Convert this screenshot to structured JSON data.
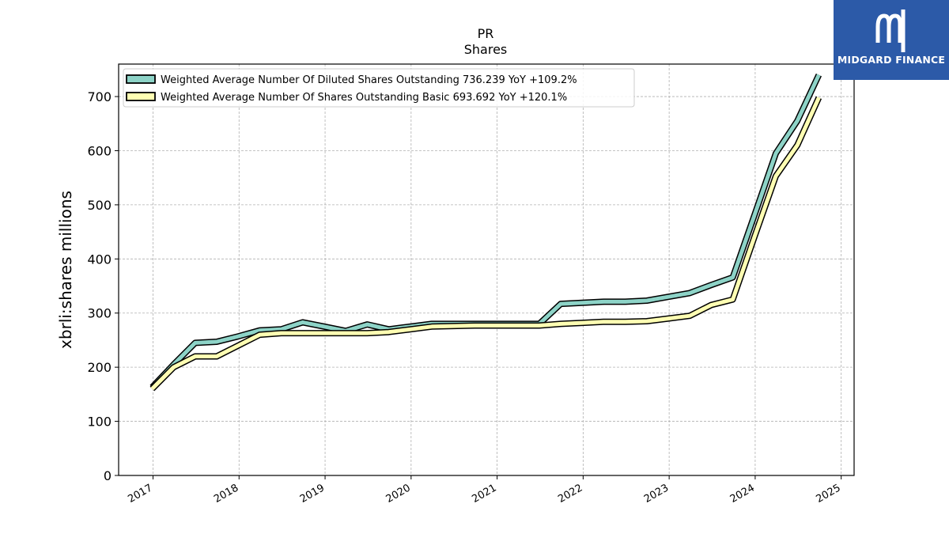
{
  "chart_data": {
    "type": "line",
    "title": "PR",
    "subtitle": "Shares",
    "ylabel": "xbrli:shares millions",
    "xlabel": "",
    "ylim": [
      0,
      760
    ],
    "xlim": [
      2016.6,
      2025.15
    ],
    "yticks": [
      0,
      100,
      200,
      300,
      400,
      500,
      600,
      700
    ],
    "xticks": [
      "2017",
      "2018",
      "2019",
      "2020",
      "2021",
      "2022",
      "2023",
      "2024",
      "2025"
    ],
    "grid": true,
    "legend_position": "top-left",
    "series": [
      {
        "name": "Weighted Average Number Of Diluted Shares Outstanding  736.239 YoY +109.2%",
        "color": "#8dd3c7",
        "points": [
          [
            2016.99,
            163
          ],
          [
            2017.24,
            205
          ],
          [
            2017.49,
            245
          ],
          [
            2017.74,
            247
          ],
          [
            2017.99,
            257
          ],
          [
            2018.24,
            268
          ],
          [
            2018.49,
            270
          ],
          [
            2018.74,
            283
          ],
          [
            2018.99,
            275
          ],
          [
            2019.24,
            267
          ],
          [
            2019.49,
            279
          ],
          [
            2019.74,
            270
          ],
          [
            2019.99,
            275
          ],
          [
            2020.24,
            280
          ],
          [
            2020.74,
            280
          ],
          [
            2021.24,
            280
          ],
          [
            2021.49,
            280
          ],
          [
            2021.74,
            317
          ],
          [
            2021.99,
            319
          ],
          [
            2022.24,
            321
          ],
          [
            2022.49,
            321
          ],
          [
            2022.74,
            323
          ],
          [
            2022.99,
            330
          ],
          [
            2023.24,
            337
          ],
          [
            2023.49,
            352
          ],
          [
            2023.74,
            366
          ],
          [
            2023.99,
            480
          ],
          [
            2024.24,
            595
          ],
          [
            2024.49,
            655
          ],
          [
            2024.74,
            740
          ]
        ]
      },
      {
        "name": "Weighted Average Number Of Shares Outstanding Basic  693.692 YoY +120.1%",
        "color": "#ffffb3",
        "points": [
          [
            2016.99,
            160
          ],
          [
            2017.24,
            200
          ],
          [
            2017.49,
            220
          ],
          [
            2017.74,
            220
          ],
          [
            2017.99,
            240
          ],
          [
            2018.24,
            260
          ],
          [
            2018.49,
            263
          ],
          [
            2018.74,
            263
          ],
          [
            2018.99,
            263
          ],
          [
            2019.24,
            263
          ],
          [
            2019.49,
            263
          ],
          [
            2019.74,
            265
          ],
          [
            2019.99,
            270
          ],
          [
            2020.24,
            275
          ],
          [
            2020.74,
            277
          ],
          [
            2021.24,
            277
          ],
          [
            2021.49,
            277
          ],
          [
            2021.74,
            280
          ],
          [
            2021.99,
            282
          ],
          [
            2022.24,
            284
          ],
          [
            2022.49,
            284
          ],
          [
            2022.74,
            285
          ],
          [
            2022.99,
            290
          ],
          [
            2023.24,
            295
          ],
          [
            2023.49,
            315
          ],
          [
            2023.74,
            325
          ],
          [
            2023.99,
            440
          ],
          [
            2024.24,
            553
          ],
          [
            2024.49,
            610
          ],
          [
            2024.74,
            698
          ]
        ]
      }
    ]
  },
  "logo": {
    "brand": "MIDGARD FINANCE"
  }
}
